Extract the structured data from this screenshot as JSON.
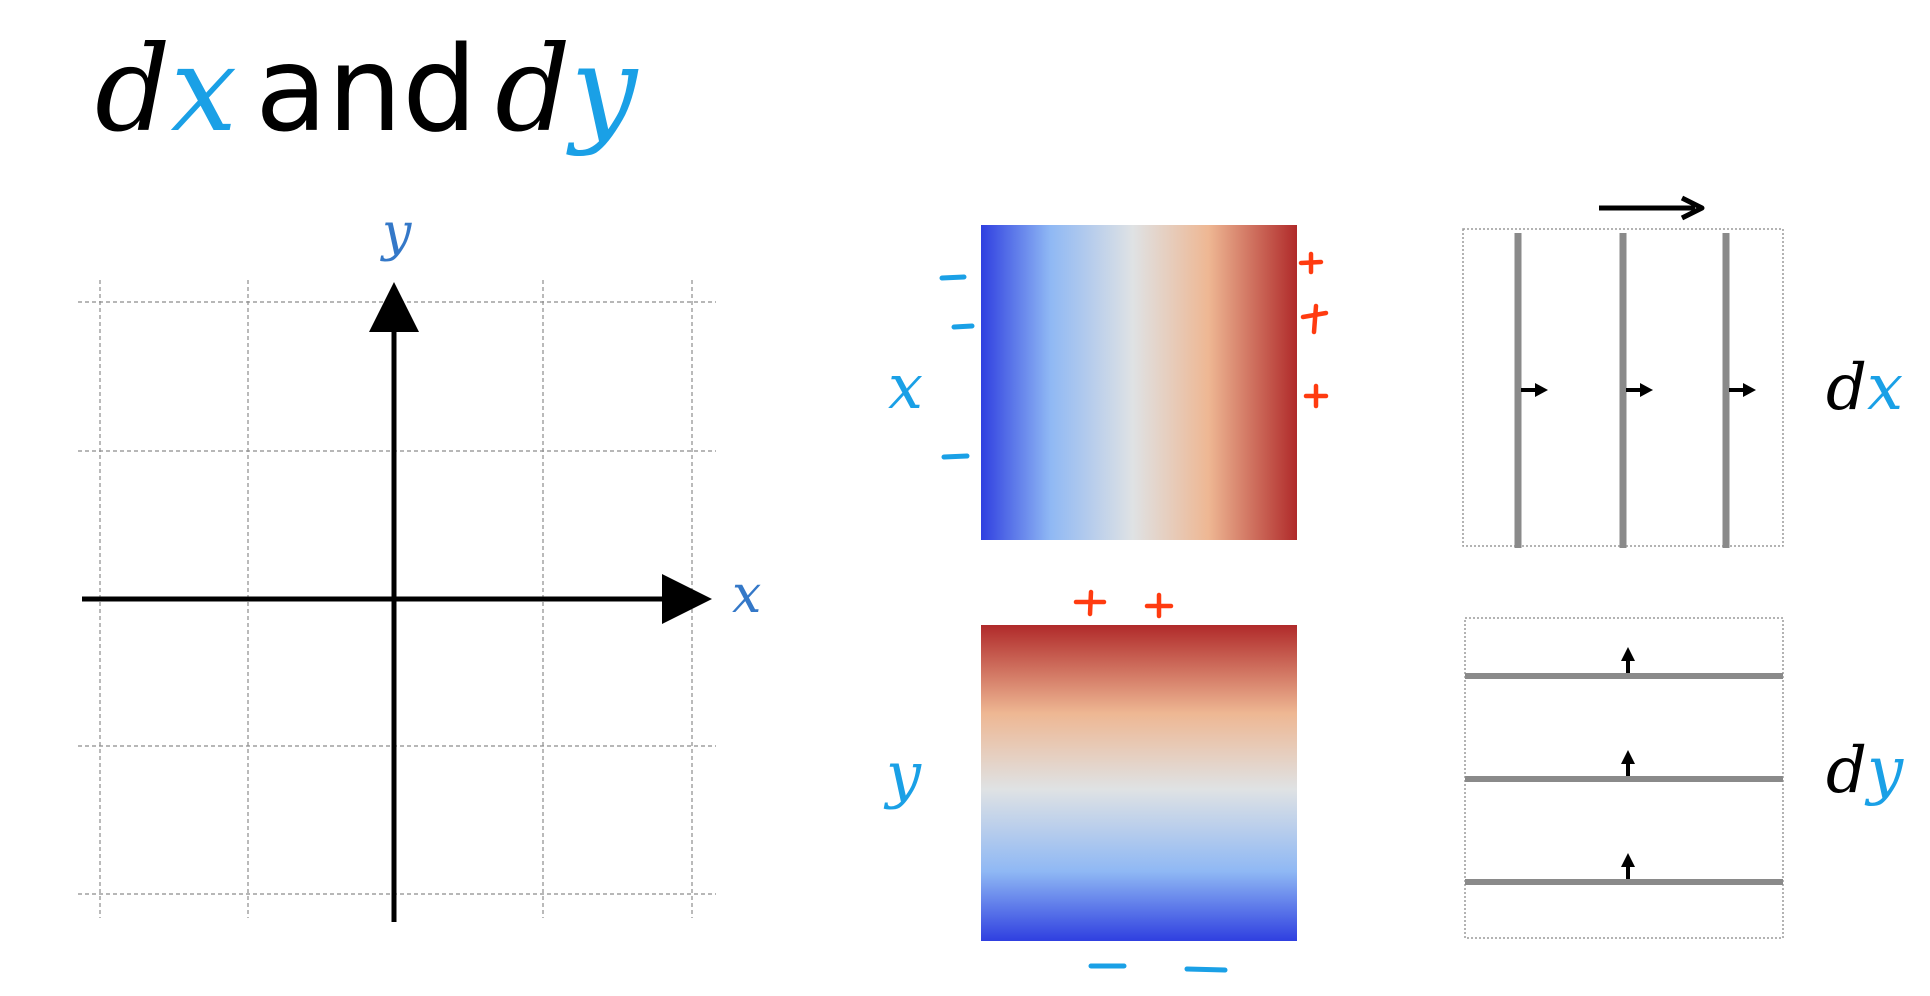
{
  "title": {
    "d1": "d",
    "var1": "x",
    "connector": "and",
    "d2": "d",
    "var2": "y"
  },
  "axes": {
    "x_label": "x",
    "y_label": "y"
  },
  "panels": {
    "x_field": {
      "label": "x",
      "sign_positive": "+",
      "sign_negative": "–"
    },
    "y_field": {
      "label": "y",
      "sign_positive": "+",
      "sign_negative": "–"
    },
    "dx": {
      "label_d": "d",
      "label_var": "x"
    },
    "dy": {
      "label_d": "d",
      "label_var": "y"
    }
  },
  "colors": {
    "var_blue": "#1aa0e6",
    "axis_label_blue": "#3478c8",
    "sign_red": "#ff3b10",
    "sign_blue": "#1aa0e6",
    "line_gray": "#8a8a8a",
    "grad_low": "#2f3fe0",
    "grad_mid": "#dcdcdc",
    "grad_high": "#b02a2a"
  },
  "icons": {
    "flow_arrow": "right-arrow-icon",
    "gradient_arrow": "small-arrowhead-icon"
  }
}
